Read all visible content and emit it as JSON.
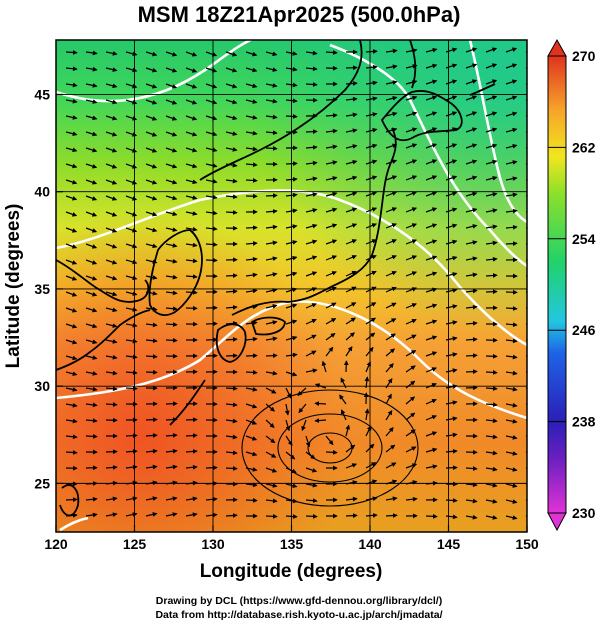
{
  "figure": {
    "title": "MSM 18Z21Apr2025 (500.0hPa)",
    "xlabel": "Longitude (degrees)",
    "ylabel": "Latitude  (degrees)",
    "credit_line1": "Drawing by DCL (https://www.gfd-dennou.org/library/dcl/)",
    "credit_line2": "Data from http://database.rish.kyoto-u.ac.jp/arch/jmadata/"
  },
  "map": {
    "lon_range": [
      120,
      150
    ],
    "lat_range": [
      22.5,
      47.8
    ],
    "lon_ticks": [
      120,
      125,
      130,
      135,
      140,
      145,
      150
    ],
    "lon_tick_labels": [
      "120",
      "125",
      "130",
      "135",
      "140",
      "145",
      "150"
    ],
    "lat_ticks": [
      25,
      30,
      35,
      40,
      45
    ],
    "lat_tick_labels": [
      "25",
      "30",
      "35",
      "40",
      "45"
    ],
    "variable": "temperature (K) shaded with wind streamlines",
    "isotherm_color": "#ffffff",
    "coastline_color": "#000000",
    "cyclone_center": {
      "lon": 137.3,
      "lat": 27.5
    }
  },
  "colorbar": {
    "min": 230,
    "max": 270,
    "tick_values": [
      230,
      238,
      246,
      254,
      262,
      270
    ],
    "tick_labels": [
      "230",
      "238",
      "246",
      "254",
      "262",
      "270"
    ],
    "colors": [
      "#e033d6",
      "#2a1fb8",
      "#1e63e6",
      "#22c7e0",
      "#21d26a",
      "#8ee02a",
      "#f0e61e",
      "#f7a52a",
      "#ef4a22",
      "#e0331f"
    ]
  }
}
